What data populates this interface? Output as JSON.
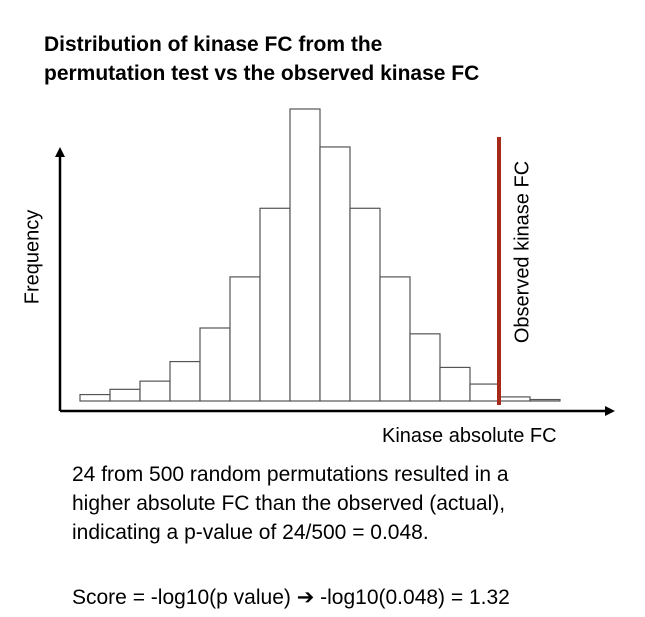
{
  "title": {
    "line1": "Distribution of kinase FC from the",
    "line2": "permutation test vs the observed kinase FC"
  },
  "chart_data": {
    "type": "bar",
    "title": "Distribution of kinase FC from the permutation test vs the observed kinase FC",
    "xlabel": "Kinase absolute FC",
    "ylabel": "Frequency",
    "bin_heights_relative": [
      0.022,
      0.04,
      0.068,
      0.135,
      0.25,
      0.425,
      0.66,
      1.0,
      0.87,
      0.66,
      0.425,
      0.23,
      0.115,
      0.058,
      0.014,
      0.005
    ],
    "observed_marker": {
      "label": "Observed kinase FC",
      "color": "#a52a1a",
      "bin_position": 14
    },
    "grid": false
  },
  "explanation": {
    "line1": "24 from 500 random permutations resulted in a",
    "line2": "higher absolute FC than the observed (actual),",
    "line3": "indicating a p-value of 24/500 = 0.048."
  },
  "score_text": "Score = -log10(p value) ➔ -log10(0.048) = 1.32",
  "colors": {
    "bar_fill": "#ffffff",
    "bar_stroke": "#555555",
    "axis": "#000000",
    "observed_line": "#a52a1a"
  }
}
